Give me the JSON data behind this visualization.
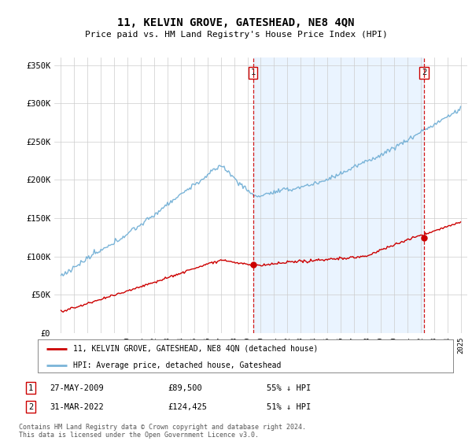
{
  "title": "11, KELVIN GROVE, GATESHEAD, NE8 4QN",
  "subtitle": "Price paid vs. HM Land Registry's House Price Index (HPI)",
  "hpi_color": "#7ab4d8",
  "price_color": "#cc0000",
  "marker_color": "#cc0000",
  "dashed_line_color": "#cc0000",
  "shade_color": "#ddeeff",
  "ylim": [
    0,
    360000
  ],
  "yticks": [
    0,
    50000,
    100000,
    150000,
    200000,
    250000,
    300000,
    350000
  ],
  "ytick_labels": [
    "£0",
    "£50K",
    "£100K",
    "£150K",
    "£200K",
    "£250K",
    "£300K",
    "£350K"
  ],
  "sale1_date_num": 2009.41,
  "sale1_price": 89500,
  "sale1_label": "1",
  "sale2_date_num": 2022.25,
  "sale2_price": 124425,
  "sale2_label": "2",
  "legend_entry1": "11, KELVIN GROVE, GATESHEAD, NE8 4QN (detached house)",
  "legend_entry2": "HPI: Average price, detached house, Gateshead",
  "table_row1_num": "1",
  "table_row1_date": "27-MAY-2009",
  "table_row1_price": "£89,500",
  "table_row1_hpi": "55% ↓ HPI",
  "table_row2_num": "2",
  "table_row2_date": "31-MAR-2022",
  "table_row2_price": "£124,425",
  "table_row2_hpi": "51% ↓ HPI",
  "footer": "Contains HM Land Registry data © Crown copyright and database right 2024.\nThis data is licensed under the Open Government Licence v3.0.",
  "background_color": "#ffffff",
  "grid_color": "#cccccc"
}
